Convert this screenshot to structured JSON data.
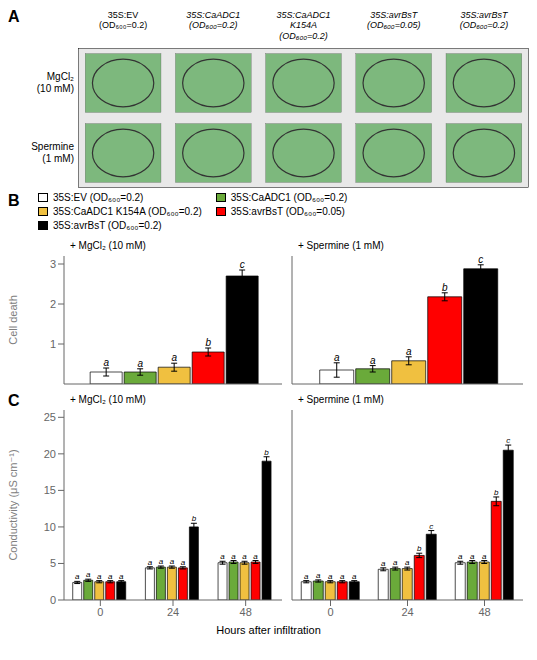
{
  "chart_data": [
    {
      "type": "image",
      "annotations": [
        "A"
      ],
      "categories": [
        "35S:EV\n(OD₆₀₀=0.2)",
        "35S:CaADC1\n(OD₆₀₀=0.2)",
        "35S:CaADC1\nK154A\n(OD₆₀₀=0.2)",
        "35S:avrBsT\n(OD₆₀₀=0.05)",
        "35S:avrBsT\n(OD₆₀₀=0.2)"
      ],
      "series": [
        {
          "name": "MgCl₂\n(10 mM)"
        },
        {
          "name": "Spermine\n(1 mM)"
        }
      ]
    },
    {
      "type": "bar",
      "annotations": [
        "B"
      ],
      "title": "+ MgCl₂ (10 mM)",
      "ylabel": "Cell death",
      "ylim": [
        0,
        3.2
      ],
      "yticks": [
        0,
        1,
        2,
        3
      ],
      "grid": false,
      "legend": "top",
      "tick_labels": "y",
      "categories": [
        null
      ],
      "series": [
        {
          "name": "35S:EV (OD₆₀₀=0.2)",
          "color": "white",
          "values": [
            0.3
          ],
          "errors": [
            0.1
          ],
          "letters": [
            "a"
          ]
        },
        {
          "name": "35S:CaADC1 (OD₆₀₀=0.2)",
          "color": "#6aaa3a",
          "values": [
            0.3
          ],
          "errors": [
            0.08
          ],
          "letters": [
            "a"
          ]
        },
        {
          "name": "35S:CaADC1 K154A (OD₆₀₀=0.2)",
          "color": "#f0c040",
          "values": [
            0.42
          ],
          "errors": [
            0.1
          ],
          "letters": [
            "a"
          ]
        },
        {
          "name": "35S:avrBsT (OD₆₀₀=0.05)",
          "color": "red",
          "values": [
            0.8
          ],
          "errors": [
            0.1
          ],
          "letters": [
            "b"
          ]
        },
        {
          "name": "35S:avrBsT (OD₆₀₀=0.2)",
          "color": "black",
          "values": [
            2.7
          ],
          "errors": [
            0.15
          ],
          "letters": [
            "c"
          ]
        }
      ]
    },
    {
      "type": "bar",
      "title": "+ Spermine (1 mM)",
      "ylim": [
        0,
        3.2
      ],
      "yticks": [
        0,
        1,
        2,
        3
      ],
      "grid": false,
      "tick_labels": false,
      "categories": [
        null
      ],
      "series": [
        {
          "color": "white",
          "values": [
            0.35
          ],
          "errors": [
            0.18
          ],
          "letters": [
            "a"
          ]
        },
        {
          "color": "#6aaa3a",
          "values": [
            0.38
          ],
          "errors": [
            0.08
          ],
          "letters": [
            "a"
          ]
        },
        {
          "color": "#f0c040",
          "values": [
            0.58
          ],
          "errors": [
            0.1
          ],
          "letters": [
            "a"
          ]
        },
        {
          "color": "red",
          "values": [
            2.18
          ],
          "errors": [
            0.1
          ],
          "letters": [
            "b"
          ]
        },
        {
          "color": "black",
          "values": [
            2.88
          ],
          "errors": [
            0.1
          ],
          "letters": [
            "c"
          ]
        }
      ]
    },
    {
      "type": "bar",
      "annotations": [
        "C"
      ],
      "title": "+ MgCl₂ (10 mM)",
      "ylabel": "Conductivity (μS cm⁻¹)",
      "xlabel": "Hours after infiltration",
      "ylim": [
        0,
        26
      ],
      "yticks": [
        0,
        5,
        10,
        15,
        20,
        25
      ],
      "grid": false,
      "categories": [
        "0",
        "24",
        "48"
      ],
      "series": [
        {
          "color": "white",
          "values": [
            2.4,
            4.4,
            5.1
          ],
          "errors": [
            0.15,
            0.15,
            0.2
          ],
          "letters": [
            "a",
            "a",
            "a"
          ]
        },
        {
          "color": "#6aaa3a",
          "values": [
            2.7,
            4.5,
            5.2
          ],
          "errors": [
            0.15,
            0.15,
            0.2
          ],
          "letters": [
            "a",
            "a",
            "a"
          ]
        },
        {
          "color": "#f0c040",
          "values": [
            2.5,
            4.5,
            5.1
          ],
          "errors": [
            0.15,
            0.15,
            0.2
          ],
          "letters": [
            "a",
            "a",
            "a"
          ]
        },
        {
          "color": "red",
          "values": [
            2.5,
            4.4,
            5.2
          ],
          "errors": [
            0.15,
            0.15,
            0.2
          ],
          "letters": [
            "a",
            "a",
            "a"
          ]
        },
        {
          "color": "black",
          "values": [
            2.5,
            10.0,
            19.0
          ],
          "errors": [
            0.15,
            0.5,
            0.6
          ],
          "letters": [
            "a",
            "b",
            "b"
          ]
        }
      ]
    },
    {
      "type": "bar",
      "title": "+ Spermine (1 mM)",
      "ylim": [
        0,
        26
      ],
      "yticks": [
        0,
        5,
        10,
        15,
        20,
        25
      ],
      "grid": false,
      "tick_labels": "x",
      "categories": [
        "0",
        "24",
        "48"
      ],
      "series": [
        {
          "color": "white",
          "values": [
            2.5,
            4.2,
            5.1
          ],
          "errors": [
            0.15,
            0.2,
            0.2
          ],
          "letters": [
            "a",
            "a",
            "a"
          ]
        },
        {
          "color": "#6aaa3a",
          "values": [
            2.6,
            4.3,
            5.2
          ],
          "errors": [
            0.15,
            0.2,
            0.2
          ],
          "letters": [
            "a",
            "a",
            "a"
          ]
        },
        {
          "color": "#f0c040",
          "values": [
            2.5,
            4.3,
            5.2
          ],
          "errors": [
            0.15,
            0.2,
            0.2
          ],
          "letters": [
            "a",
            "a",
            "a"
          ]
        },
        {
          "color": "red",
          "values": [
            2.5,
            6.1,
            13.5
          ],
          "errors": [
            0.15,
            0.3,
            0.6
          ],
          "letters": [
            "a",
            "b",
            "b"
          ]
        },
        {
          "color": "black",
          "values": [
            2.5,
            9.0,
            20.5
          ],
          "errors": [
            0.15,
            0.5,
            0.7
          ],
          "letters": [
            "a",
            "c",
            "c"
          ]
        }
      ]
    }
  ]
}
